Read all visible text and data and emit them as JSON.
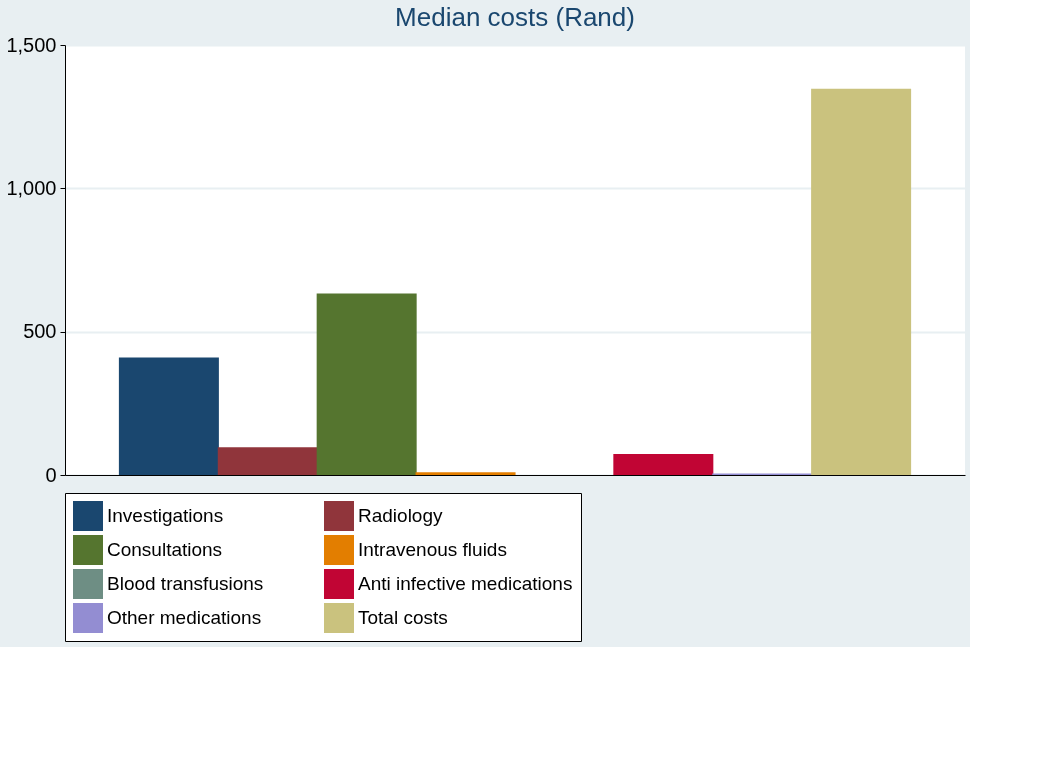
{
  "chart_data": {
    "type": "bar",
    "title": "Median costs (Rand)",
    "categories": [
      null
    ],
    "series": [
      {
        "name": "Investigations",
        "color": "#1a476f",
        "values": [
          410
        ]
      },
      {
        "name": "Radiology",
        "color": "#90353b",
        "values": [
          97
        ]
      },
      {
        "name": "Consultations",
        "color": "#55752f",
        "values": [
          633
        ]
      },
      {
        "name": "Intravenous fluids",
        "color": "#e37e00",
        "values": [
          10
        ]
      },
      {
        "name": "Blood transfusions",
        "color": "#6e8e84",
        "values": [
          0
        ]
      },
      {
        "name": "Anti infective medications",
        "color": "#c10534",
        "values": [
          73
        ]
      },
      {
        "name": "Other medications",
        "color": "#938dd2",
        "values": [
          5
        ]
      },
      {
        "name": "Total costs",
        "color": "#cac27e",
        "values": [
          1347
        ]
      }
    ],
    "ylim": [
      0,
      1500
    ],
    "yticks": [
      0,
      500,
      {
        "value": 1000,
        "label": "1,000"
      },
      {
        "value": 1500,
        "label": "1,500"
      }
    ],
    "grid": "y",
    "legend": "bottom"
  }
}
